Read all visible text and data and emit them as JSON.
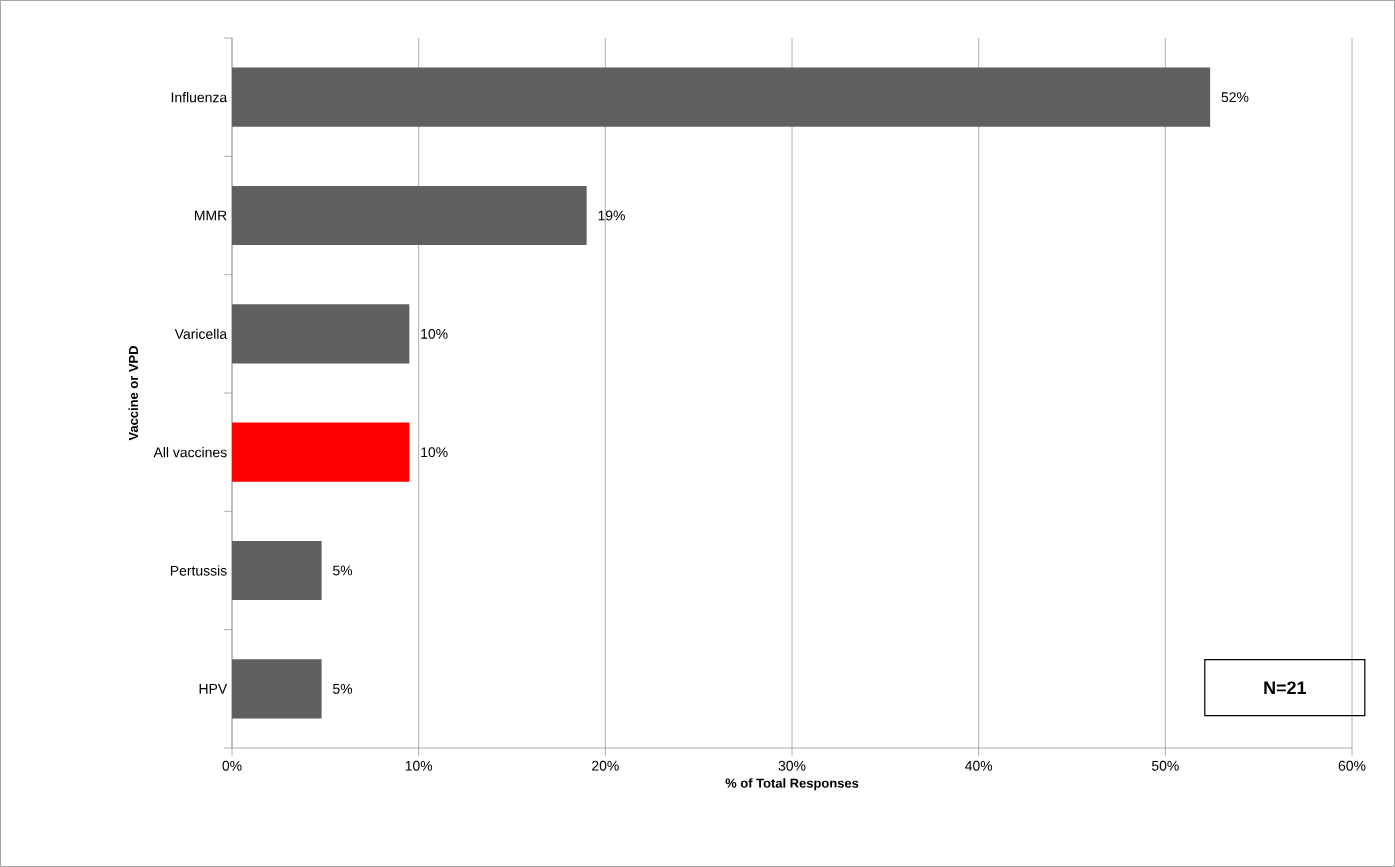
{
  "chart_data": {
    "type": "bar",
    "orientation": "horizontal",
    "categories": [
      "Influenza",
      "MMR",
      "Varicella",
      "All vaccines",
      "Pertussis",
      "HPV"
    ],
    "values": [
      52.4,
      19.0,
      9.5,
      9.5,
      4.8,
      4.8
    ],
    "colors": [
      "#606060",
      "#606060",
      "#606060",
      "#ff0000",
      "#606060",
      "#606060"
    ],
    "value_labels": [
      "52%",
      "19%",
      "10%",
      "10%",
      "5%",
      "5%"
    ],
    "xlabel": "% of Total Responses",
    "ylabel": "Vaccine or VPD",
    "xlim": [
      0,
      60
    ],
    "xticks": [
      {
        "value": 0,
        "label": "0%"
      },
      {
        "value": 10,
        "label": "10%"
      },
      {
        "value": 20,
        "label": "20%"
      },
      {
        "value": 30,
        "label": "30%"
      },
      {
        "value": 40,
        "label": "40%"
      },
      {
        "value": 50,
        "label": "50%"
      },
      {
        "value": 60,
        "label": "60%"
      }
    ],
    "grid": "x",
    "annotations": [
      "N=21"
    ]
  }
}
